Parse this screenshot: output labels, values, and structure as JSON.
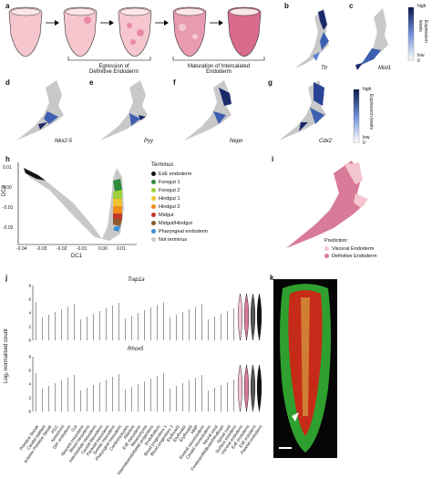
{
  "panel_letters": {
    "a": "a",
    "b": "b",
    "c": "c",
    "d": "d",
    "e": "e",
    "f": "f",
    "g": "g",
    "h": "h",
    "i": "i",
    "j": "j",
    "k": "k"
  },
  "panel_a": {
    "egression_label": "Egression of\nDefinitive Endoderm",
    "maturation_label": "Maturation of Intercalated\nEndoderm"
  },
  "genes": {
    "b": "Ttr",
    "c": "Mixl1",
    "d": "Nkx2-5",
    "e": "Pyy",
    "f": "Nepn",
    "g": "Cdx2"
  },
  "expression_scale": {
    "title": "Expression levels",
    "high": "high",
    "low": "low",
    "zero": "0"
  },
  "panel_h": {
    "legend_title": "Terminus",
    "xlabel": "DC1",
    "ylabel": "DC2",
    "xticks": [
      "-0.04",
      "-0.03",
      "-0.02",
      "-0.01",
      "0.00",
      "0.01"
    ],
    "yticks": [
      "0.01",
      "0.00",
      "-0.01",
      "-0.02"
    ],
    "legend": [
      {
        "label": "ExE endoderm",
        "color": "#111111"
      },
      {
        "label": "Foregut 1",
        "color": "#2e8b3a"
      },
      {
        "label": "Foregut 2",
        "color": "#9fcf3c"
      },
      {
        "label": "Hindgut 1",
        "color": "#f1c232"
      },
      {
        "label": "Hindgut 2",
        "color": "#f08c1e"
      },
      {
        "label": "Midgut",
        "color": "#c0392b"
      },
      {
        "label": "Midgut/Hindgut",
        "color": "#8e5a2b"
      },
      {
        "label": "Pharyngeal endoderm",
        "color": "#3b8fd6"
      },
      {
        "label": "Not terminus",
        "color": "#c8c8c8"
      }
    ]
  },
  "panel_i": {
    "title": "Prediction:",
    "visceral": "Visceral Endoderm",
    "definitive": "Definitive Endoderm",
    "visceral_color": "#f4c6cf",
    "definitive_color": "#d87a9a"
  },
  "panel_j": {
    "gene_top": "Trap1a",
    "gene_bottom": "Rhox5",
    "ylabel": "Log₂ normalised count",
    "yticks_top": [
      "0",
      "2",
      "4",
      "6",
      "8"
    ],
    "yticks_bottom": [
      "0",
      "2",
      "4",
      "6",
      "8"
    ],
    "categories": [
      "Primitive Streak",
      "Caudal epiblast",
      "Anterior Primitive Streak",
      "PGC",
      "Notochord",
      "Def. endoderm",
      "Gut",
      "Nascent mesoderm",
      "Mixed mesoderm",
      "Intermediate mesoderm",
      "Caudal Mesoderm",
      "Paraxial mesoderm",
      "Somitic mesoderm",
      "Pharyngeal mesoderm",
      "Cardiomyocytes",
      "Allantois",
      "ExE mesoderm",
      "Mesenchyme",
      "Haematoendothelial progenitors",
      "Endothelium",
      "Blood progenitors 1",
      "Blood progenitors 2",
      "Erythroid1",
      "Erythroid2",
      "Erythroid3",
      "NMP",
      "Rostral neurectoderm",
      "Caudal neurectoderm",
      "Neural crest",
      "Forebrain/Midbrain/Hindbrain",
      "Spinal cord",
      "Surface ectoderm",
      "Visceral endoderm",
      "ExE endoderm",
      "ExE ectoderm",
      "Parietal endoderm"
    ],
    "violin_colors": [
      "#f4c6cf",
      "#d87a9a",
      "#555555",
      "#111111"
    ]
  },
  "panel_k": {
    "arrowhead": "arrowhead"
  }
}
